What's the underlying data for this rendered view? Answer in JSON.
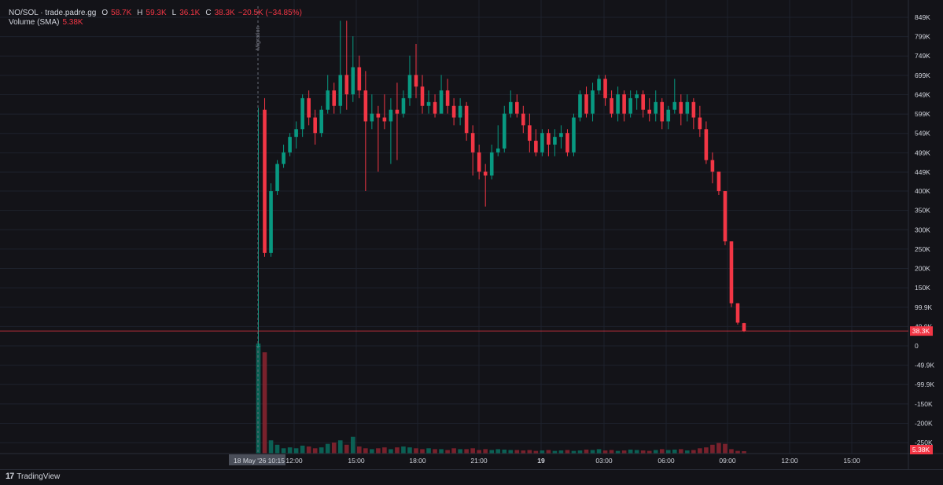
{
  "legend": {
    "symbol": "NO/SOL · trade.padre.gg",
    "o_label": "O",
    "o_value": "58.7K",
    "h_label": "H",
    "h_value": "59.3K",
    "l_label": "L",
    "l_value": "36.1K",
    "c_label": "C",
    "c_value": "38.3K",
    "change": "−20.5K (−34.85%)",
    "volume_label": "Volume (SMA)",
    "volume_value": "5.38K"
  },
  "footer": {
    "brand": "TradingView",
    "logo_mark": "17"
  },
  "colors": {
    "up": "#089981",
    "down": "#f23645",
    "background": "#131318",
    "grid": "#1e222d",
    "text": "#d1d4dc"
  },
  "chart_data": {
    "type": "candlestick",
    "y_ticks": [
      "849K",
      "799K",
      "749K",
      "699K",
      "649K",
      "599K",
      "549K",
      "499K",
      "449K",
      "400K",
      "350K",
      "300K",
      "250K",
      "200K",
      "150K",
      "99.9K",
      "49.9K",
      "0",
      "-49.9K",
      "-99.9K",
      "-150K",
      "-200K",
      "-250K"
    ],
    "y_tick_values": [
      849,
      799,
      749,
      699,
      649,
      599,
      549,
      499,
      449,
      400,
      350,
      300,
      250,
      200,
      150,
      99.9,
      49.9,
      0,
      -49.9,
      -99.9,
      -150,
      -200,
      -250
    ],
    "x_ticks": [
      "18 May '26  10:15",
      "12:00",
      "15:00",
      "18:00",
      "21:00",
      "19",
      "03:00",
      "06:00",
      "09:00",
      "12:00",
      "15:00"
    ],
    "event_marker": "Migration",
    "last_price_label": "38.3K",
    "last_price": 38.3,
    "volume_label": "5.38K",
    "candles": [
      [
        0,
        0,
        615,
        0,
        610
      ],
      [
        610,
        240,
        640,
        230,
        240
      ],
      [
        240,
        400,
        420,
        230,
        400
      ],
      [
        400,
        470,
        480,
        390,
        470
      ],
      [
        470,
        500,
        520,
        460,
        500
      ],
      [
        500,
        540,
        550,
        490,
        540
      ],
      [
        540,
        560,
        580,
        510,
        560
      ],
      [
        560,
        640,
        650,
        540,
        640
      ],
      [
        640,
        590,
        660,
        570,
        590
      ],
      [
        590,
        550,
        610,
        520,
        550
      ],
      [
        550,
        610,
        620,
        540,
        610
      ],
      [
        610,
        660,
        700,
        600,
        660
      ],
      [
        660,
        620,
        680,
        600,
        620
      ],
      [
        620,
        700,
        840,
        600,
        700
      ],
      [
        700,
        650,
        840,
        610,
        650
      ],
      [
        650,
        720,
        800,
        630,
        720
      ],
      [
        720,
        660,
        750,
        640,
        660
      ],
      [
        660,
        580,
        710,
        400,
        580
      ],
      [
        580,
        600,
        650,
        560,
        600
      ],
      [
        600,
        590,
        620,
        450,
        590
      ],
      [
        590,
        580,
        650,
        560,
        580
      ],
      [
        580,
        610,
        640,
        470,
        610
      ],
      [
        610,
        600,
        680,
        480,
        600
      ],
      [
        600,
        640,
        660,
        590,
        640
      ],
      [
        640,
        700,
        750,
        620,
        700
      ],
      [
        700,
        670,
        780,
        640,
        670
      ],
      [
        670,
        620,
        700,
        600,
        620
      ],
      [
        620,
        630,
        660,
        600,
        630
      ],
      [
        630,
        600,
        650,
        590,
        600
      ],
      [
        600,
        660,
        700,
        640,
        660
      ],
      [
        660,
        620,
        690,
        600,
        620
      ],
      [
        620,
        590,
        640,
        570,
        590
      ],
      [
        590,
        620,
        640,
        570,
        620
      ],
      [
        620,
        550,
        630,
        530,
        550
      ],
      [
        550,
        500,
        570,
        440,
        500
      ],
      [
        500,
        450,
        520,
        430,
        450
      ],
      [
        450,
        440,
        470,
        360,
        440
      ],
      [
        440,
        500,
        520,
        430,
        500
      ],
      [
        500,
        510,
        570,
        490,
        510
      ],
      [
        510,
        600,
        620,
        500,
        600
      ],
      [
        600,
        630,
        660,
        590,
        630
      ],
      [
        630,
        600,
        650,
        590,
        600
      ],
      [
        600,
        570,
        620,
        550,
        570
      ],
      [
        570,
        530,
        600,
        500,
        530
      ],
      [
        530,
        500,
        560,
        490,
        500
      ],
      [
        500,
        550,
        560,
        490,
        550
      ],
      [
        550,
        520,
        560,
        490,
        520
      ],
      [
        520,
        540,
        560,
        490,
        540
      ],
      [
        540,
        550,
        570,
        510,
        550
      ],
      [
        550,
        500,
        560,
        490,
        500
      ],
      [
        500,
        590,
        600,
        490,
        590
      ],
      [
        590,
        650,
        660,
        580,
        650
      ],
      [
        650,
        600,
        670,
        590,
        600
      ],
      [
        600,
        660,
        680,
        580,
        660
      ],
      [
        660,
        690,
        700,
        650,
        690
      ],
      [
        690,
        640,
        700,
        620,
        640
      ],
      [
        640,
        600,
        660,
        590,
        600
      ],
      [
        600,
        650,
        670,
        580,
        650
      ],
      [
        650,
        600,
        660,
        580,
        600
      ],
      [
        600,
        640,
        660,
        590,
        640
      ],
      [
        640,
        650,
        660,
        610,
        650
      ],
      [
        650,
        610,
        660,
        590,
        610
      ],
      [
        610,
        600,
        640,
        580,
        600
      ],
      [
        600,
        630,
        660,
        580,
        630
      ],
      [
        630,
        580,
        640,
        560,
        580
      ],
      [
        580,
        610,
        620,
        560,
        610
      ],
      [
        610,
        630,
        690,
        600,
        630
      ],
      [
        630,
        600,
        650,
        570,
        600
      ],
      [
        600,
        630,
        650,
        580,
        630
      ],
      [
        630,
        590,
        640,
        560,
        590
      ],
      [
        590,
        560,
        620,
        540,
        560
      ],
      [
        560,
        480,
        580,
        470,
        480
      ],
      [
        480,
        450,
        500,
        420,
        450
      ],
      [
        450,
        400,
        450,
        390,
        400
      ],
      [
        400,
        270,
        400,
        260,
        270
      ],
      [
        270,
        110,
        270,
        100,
        110
      ],
      [
        110,
        60,
        110,
        55,
        60
      ],
      [
        58.7,
        38.3,
        59.3,
        36.1,
        38.3
      ]
    ],
    "volumes_k": [
      250,
      230,
      30,
      20,
      12,
      14,
      12,
      18,
      16,
      12,
      14,
      22,
      25,
      30,
      20,
      38,
      16,
      12,
      10,
      12,
      14,
      10,
      14,
      16,
      14,
      12,
      10,
      12,
      10,
      10,
      8,
      12,
      10,
      10,
      12,
      8,
      10,
      8,
      10,
      9,
      8,
      8,
      7,
      8,
      6,
      7,
      8,
      6,
      7,
      8,
      6,
      7,
      9,
      8,
      10,
      7,
      8,
      6,
      7,
      9,
      8,
      7,
      6,
      8,
      10,
      8,
      9,
      10,
      7,
      8,
      12,
      14,
      20,
      24,
      22,
      10,
      6,
      5.38
    ]
  }
}
